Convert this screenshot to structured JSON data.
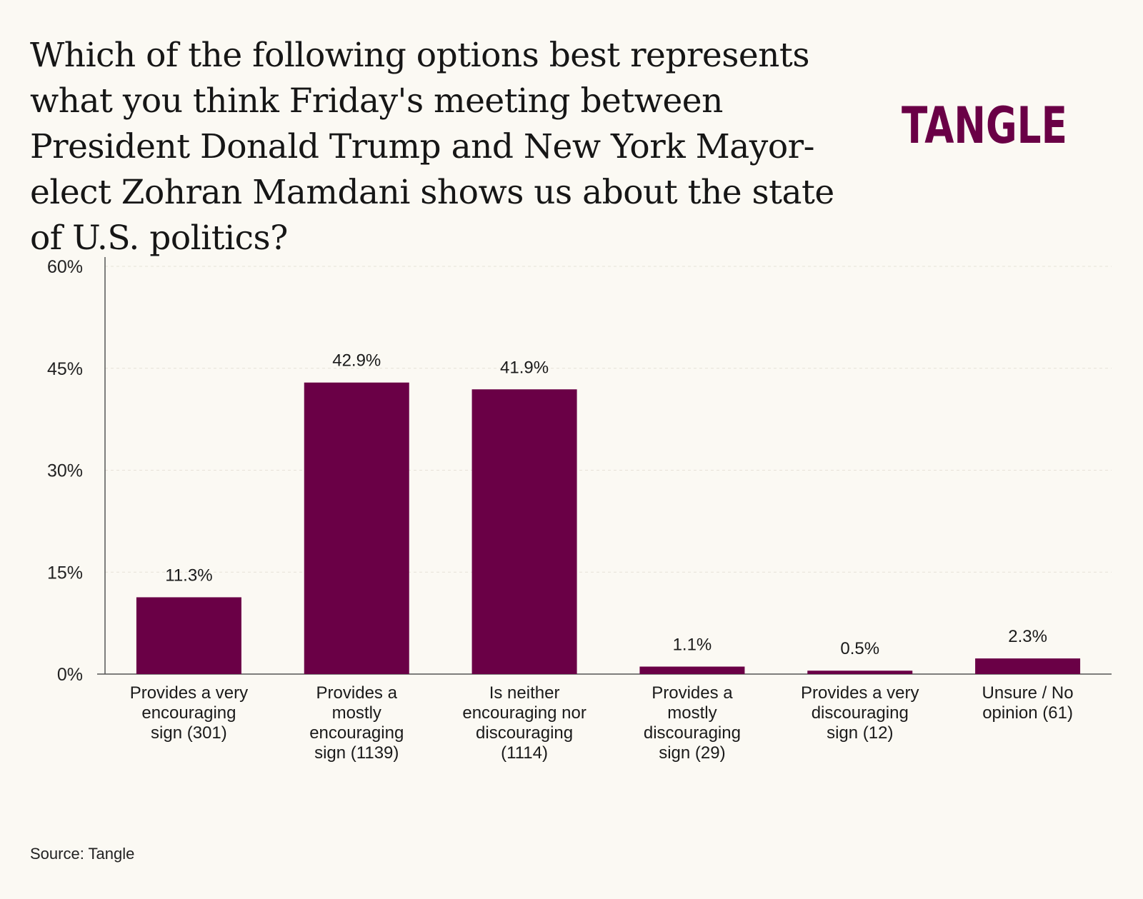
{
  "title": "Which of the following options best represents what you think Friday's meeting between President Donald Trump and New York Mayor-elect Zohran Mamdani shows us about the state of U.S. politics?",
  "logo": {
    "text": "TANGLE",
    "color": "#6a0046"
  },
  "source": "Source: Tangle",
  "colors": {
    "bar": "#6a0046",
    "axis": "#555555",
    "grid": "#e6e2d8"
  },
  "chart_data": {
    "type": "bar",
    "title": "",
    "xlabel": "",
    "ylabel": "",
    "ylim": [
      0,
      60
    ],
    "yticks": [
      0,
      15,
      30,
      45,
      60
    ],
    "ytick_labels": [
      "0%",
      "15%",
      "30%",
      "45%",
      "60%"
    ],
    "grid": true,
    "categories": [
      [
        "Provides a very",
        "encouraging",
        "sign (301)"
      ],
      [
        "Provides a",
        "mostly",
        "encouraging",
        "sign (1139)"
      ],
      [
        "Is neither",
        "encouraging nor",
        "discouraging",
        "(1114)"
      ],
      [
        "Provides a",
        "mostly",
        "discouraging",
        "sign (29)"
      ],
      [
        "Provides a very",
        "discouraging",
        "sign (12)"
      ],
      [
        "Unsure / No",
        "opinion (61)"
      ]
    ],
    "values": [
      11.3,
      42.9,
      41.9,
      1.1,
      0.5,
      2.3
    ],
    "value_labels": [
      "11.3%",
      "42.9%",
      "41.9%",
      "1.1%",
      "0.5%",
      "2.3%"
    ]
  }
}
